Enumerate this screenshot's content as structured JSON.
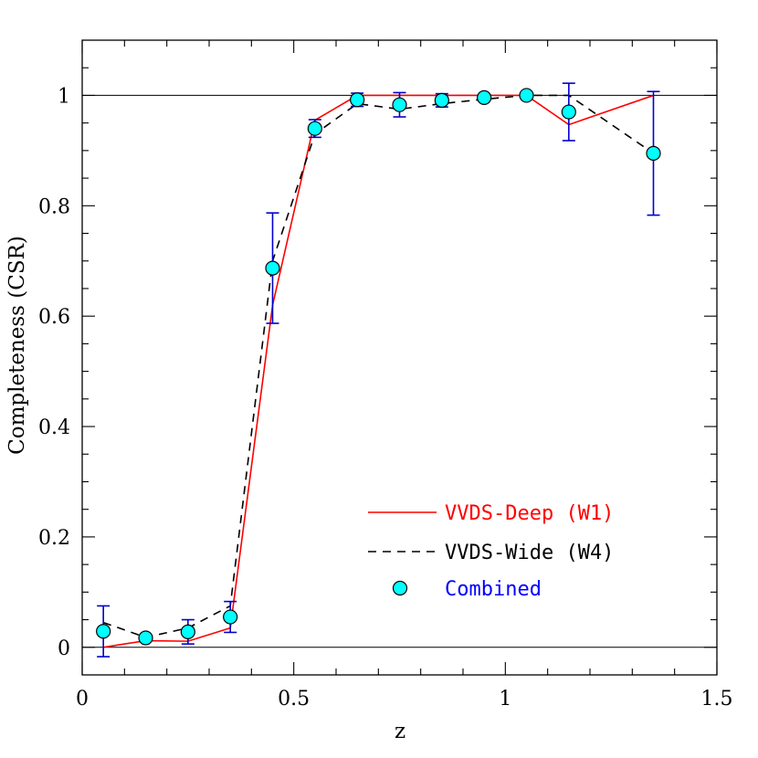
{
  "chart_data": {
    "type": "line",
    "xlabel": "z",
    "ylabel": "Completeness (CSR)",
    "xlim": [
      0,
      1.5
    ],
    "ylim": [
      -0.05,
      1.1
    ],
    "x_ticks": [
      {
        "value": 0,
        "label": "0"
      },
      {
        "value": 0.5,
        "label": "0.5"
      },
      {
        "value": 1,
        "label": "1"
      },
      {
        "value": 1.5,
        "label": "1.5"
      }
    ],
    "y_ticks": [
      {
        "value": 0,
        "label": "0"
      },
      {
        "value": 0.2,
        "label": "0.2"
      },
      {
        "value": 0.4,
        "label": "0.4"
      },
      {
        "value": 0.6,
        "label": "0.6"
      },
      {
        "value": 0.8,
        "label": "0.8"
      },
      {
        "value": 1,
        "label": "1"
      }
    ],
    "reference_lines": [
      0,
      1
    ],
    "grid": false,
    "legend_position": "lower-right",
    "series": [
      {
        "name": "VVDS-Deep (W1)",
        "type": "line",
        "style": "solid",
        "color": "#ff0000",
        "x": [
          0.05,
          0.15,
          0.25,
          0.35,
          0.45,
          0.55,
          0.65,
          0.75,
          0.85,
          0.95,
          1.05,
          1.15,
          1.35
        ],
        "y": [
          0.0,
          0.012,
          0.011,
          0.035,
          0.62,
          0.955,
          1.0,
          1.0,
          1.0,
          1.0,
          1.0,
          0.947,
          1.0
        ]
      },
      {
        "name": "VVDS-Wide (W4)",
        "type": "line",
        "style": "dashed",
        "color": "#000000",
        "x": [
          0.05,
          0.15,
          0.25,
          0.35,
          0.45,
          0.55,
          0.65,
          0.75,
          0.85,
          0.95,
          1.05,
          1.15,
          1.35
        ],
        "y": [
          0.045,
          0.018,
          0.035,
          0.075,
          0.7,
          0.93,
          0.985,
          0.975,
          0.985,
          0.993,
          1.0,
          1.0,
          0.895
        ]
      },
      {
        "name": "Combined",
        "type": "scatter",
        "color": "#00ffff",
        "edge_color": "#000000",
        "error_color": "#0000cc",
        "x": [
          0.05,
          0.15,
          0.25,
          0.35,
          0.45,
          0.55,
          0.65,
          0.75,
          0.85,
          0.95,
          1.05,
          1.15,
          1.35
        ],
        "y": [
          0.029,
          0.017,
          0.028,
          0.055,
          0.687,
          0.94,
          0.992,
          0.983,
          0.991,
          0.996,
          1.0,
          0.97,
          0.895
        ],
        "err": [
          0.046,
          0.0,
          0.022,
          0.028,
          0.1,
          0.016,
          0.012,
          0.022,
          0.012,
          0.0,
          0.0,
          0.052,
          0.112
        ]
      }
    ],
    "legend_colors": {
      "VVDS-Deep (W1)": "#ff0000",
      "VVDS-Wide (W4)": "#000000",
      "Combined": "#0000ff"
    }
  }
}
